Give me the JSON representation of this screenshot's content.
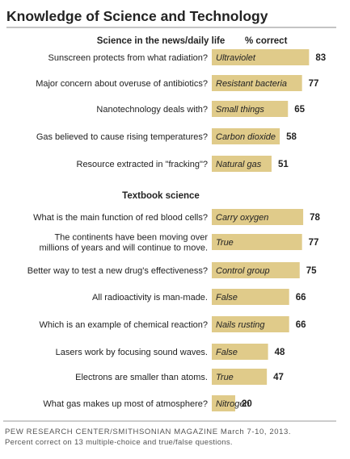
{
  "title": "Knowledge of Science and Technology",
  "header_right": "% correct",
  "colors": {
    "bar": "#e0cb8a",
    "divider": "#999999",
    "title_rule": "#888888"
  },
  "chart_data": {
    "type": "bar",
    "orientation": "horizontal",
    "title": "Knowledge of Science and Technology",
    "value_label": "% correct",
    "xlim": [
      0,
      100
    ],
    "grid": false,
    "sections": [
      {
        "name": "Science in the news/daily life",
        "items": [
          {
            "question": [
              "Sunscreen protects from what radiation?"
            ],
            "answer": "Ultraviolet",
            "value": 83
          },
          {
            "question": [
              "Major concern about overuse of antibiotics?"
            ],
            "answer": "Resistant bacteria",
            "value": 77
          },
          {
            "question": [
              "Nanotechnology deals with?"
            ],
            "answer": "Small things",
            "value": 65
          },
          {
            "question": [
              "Gas believed to cause rising temperatures?"
            ],
            "answer": "Carbon dioxide",
            "value": 58
          },
          {
            "question": [
              "Resource extracted in \"fracking\"?"
            ],
            "answer": "Natural gas",
            "value": 51
          }
        ]
      },
      {
        "name": "Textbook science",
        "items": [
          {
            "question": [
              "What is the main function of red blood cells?"
            ],
            "answer": "Carry oxygen",
            "value": 78
          },
          {
            "question": [
              "The continents have been moving over",
              "millions of years and will continue to move."
            ],
            "answer": "True",
            "value": 77
          },
          {
            "question": [
              "Better way to test a new drug's effectiveness?"
            ],
            "answer": "Control group",
            "value": 75
          },
          {
            "question": [
              "All radioactivity is man-made."
            ],
            "answer": "False",
            "value": 66
          },
          {
            "question": [
              "Which is an example of chemical reaction?"
            ],
            "answer": "Nails rusting",
            "value": 66
          },
          {
            "question": [
              "Lasers work by focusing sound waves."
            ],
            "answer": "False",
            "value": 48
          },
          {
            "question": [
              "Electrons are smaller than atoms."
            ],
            "answer": "True",
            "value": 47
          },
          {
            "question": [
              "What gas makes up most of atmosphere?"
            ],
            "answer": "Nitrogen",
            "value": 20
          }
        ]
      }
    ]
  },
  "source": "PEW RESEARCH CENTER/SMITHSONIAN  MAGAZINE  March 7-10, 2013.",
  "note": "Percent correct on 13 multiple-choice and true/false questions."
}
